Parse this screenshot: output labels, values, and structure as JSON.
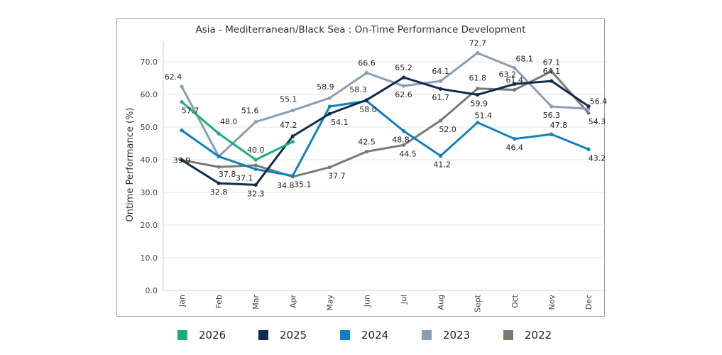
{
  "chart_data": {
    "type": "line",
    "title": "Asia - Mediterranean/Black Sea  : On-Time  Performance Development",
    "ylabel": "Ontime Performance (%)",
    "xlabel": "",
    "ylim": [
      0,
      75
    ],
    "yticks": [
      "0.0",
      "10.0",
      "20.0",
      "30.0",
      "40.0",
      "50.0",
      "60.0",
      "70.0"
    ],
    "ytick_values": [
      0,
      10,
      20,
      30,
      40,
      50,
      60,
      70
    ],
    "categories": [
      "Jan",
      "Feb",
      "Mar",
      "Apr",
      "May",
      "Jun",
      "Jul",
      "Aug",
      "Sept",
      "Oct",
      "Nov",
      "Dec"
    ],
    "grid": true,
    "legend_position": "bottom",
    "series": [
      {
        "name": "2022",
        "color": "#7a7a72",
        "values": [
          39.9,
          37.8,
          38.3,
          34.8,
          37.7,
          42.5,
          44.5,
          52.0,
          61.8,
          61.4,
          67.1,
          54.3
        ],
        "labels": [
          "39.9",
          "37.8",
          null,
          "34.8",
          "37.7",
          "42.5",
          "44.5",
          "52.0",
          "61.8",
          "61.4",
          "67.1",
          "54.3"
        ]
      },
      {
        "name": "2023",
        "color": "#8a9db5",
        "values": [
          62.4,
          41.0,
          51.6,
          55.1,
          58.9,
          66.6,
          62.6,
          64.1,
          72.7,
          68.1,
          56.3,
          55.6
        ],
        "labels": [
          "62.4",
          null,
          "51.6",
          "55.1",
          "58.9",
          "66.6",
          "62.6",
          "64.1",
          "72.7",
          "68.1",
          "56.3",
          null
        ]
      },
      {
        "name": "2024",
        "color": "#1080bf",
        "values": [
          49.0,
          41.0,
          37.1,
          35.1,
          56.3,
          58.0,
          48.8,
          41.2,
          51.4,
          46.4,
          47.8,
          43.2
        ],
        "labels": [
          null,
          null,
          "37.1",
          "35.1",
          null,
          "58.0",
          "48.8",
          "41.2",
          "51.4",
          "46.4",
          "47.8",
          "43.2"
        ]
      },
      {
        "name": "2025",
        "color": "#0f2a4d",
        "values": [
          39.9,
          32.8,
          32.3,
          47.2,
          54.1,
          58.3,
          65.2,
          61.7,
          59.9,
          63.2,
          64.1,
          56.4
        ],
        "labels": [
          null,
          "32.8",
          "32.3",
          "47.2",
          "54.1",
          "58.3",
          "65.2",
          "61.7",
          "59.9",
          "63.2",
          "64.1",
          "56.4"
        ]
      },
      {
        "name": "2026",
        "color": "#1aaf7a",
        "values": [
          57.7,
          48.0,
          40.0,
          45.5,
          null,
          null,
          null,
          null,
          null,
          null,
          null,
          null
        ],
        "labels": [
          "57.7",
          "48.0",
          "40.0",
          null,
          null,
          null,
          null,
          null,
          null,
          null,
          null,
          null
        ]
      }
    ],
    "legend_order": [
      "2026",
      "2025",
      "2024",
      "2023",
      "2022"
    ]
  }
}
